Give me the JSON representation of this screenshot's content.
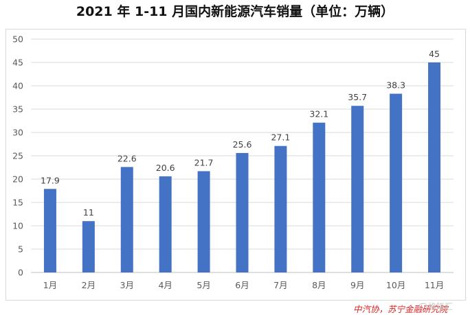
{
  "chart_data": {
    "type": "bar",
    "title": "2021 年 1-11 月国内新能源汽车销量（单位：万辆）",
    "categories": [
      "1月",
      "2月",
      "3月",
      "4月",
      "5月",
      "6月",
      "7月",
      "8月",
      "9月",
      "10月",
      "11月"
    ],
    "values": [
      17.9,
      11,
      22.6,
      20.6,
      21.7,
      25.6,
      27.1,
      32.1,
      35.7,
      38.3,
      45
    ],
    "value_labels": [
      "17.9",
      "11",
      "22.6",
      "20.6",
      "21.7",
      "25.6",
      "27.1",
      "32.1",
      "35.7",
      "38.3",
      "45"
    ],
    "y_ticks": [
      "0",
      "5",
      "10",
      "15",
      "20",
      "25",
      "30",
      "35",
      "40",
      "45",
      "50"
    ],
    "ylim": [
      0,
      50
    ],
    "grid": true,
    "legend": "none",
    "bar_color": "#4472C4"
  },
  "source": "中汽协，苏宁金融研究院",
  "watermark": "格隆汇"
}
